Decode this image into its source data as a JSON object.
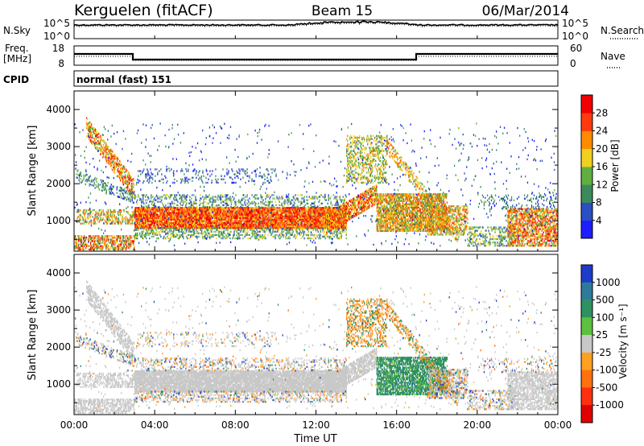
{
  "header": {
    "station": "Kerguelen (fitACF)",
    "beam": "Beam 15",
    "date": "06/Mar/2014"
  },
  "panels": {
    "nsky": {
      "label": "N.Sky",
      "tick_top": "10^5",
      "tick_bottom": "10^0",
      "right_label": "N.Search",
      "right_tick_top": "10^5",
      "right_tick_bottom": "10^0"
    },
    "freq": {
      "label_line1": "Freq.",
      "label_line2": "[MHz]",
      "tick_top": "18",
      "tick_bottom": "8",
      "right_label": "Nave",
      "right_tick_top": "60",
      "right_tick_bottom": "0"
    },
    "cpid": {
      "label": "CPID",
      "value": "normal (fast) 151"
    }
  },
  "axes": {
    "ylabel": "Slant Range [km]",
    "yticks": [
      "1000",
      "2000",
      "3000",
      "4000"
    ],
    "xlabel": "Time UT",
    "xticks": [
      "00:00",
      "04:00",
      "08:00",
      "12:00",
      "16:00",
      "20:00",
      "00:00"
    ]
  },
  "colorbars": {
    "power": {
      "label": "Power [dB]",
      "ticks": [
        "4",
        "8",
        "12",
        "16",
        "20",
        "24",
        "28"
      ],
      "colors": [
        "#1d1dff",
        "#2b4ec0",
        "#3c8a5c",
        "#5fb040",
        "#f0d020",
        "#ff8c00",
        "#ff3a10",
        "#f00000"
      ]
    },
    "velocity": {
      "label": "Velocity [m s⁻¹]",
      "ticks": [
        "1000",
        "500",
        "100",
        "25",
        "-25",
        "-100",
        "-500",
        "-1000"
      ],
      "colors": [
        "#1e3cc8",
        "#2f7a9a",
        "#2f9060",
        "#5dc040",
        "#c8c8c8",
        "#ffa020",
        "#ff7010",
        "#ff3010",
        "#e00000"
      ]
    }
  },
  "chart_data": [
    {
      "type": "heatmap",
      "title": "Power",
      "x_range": [
        "00:00",
        "24:00"
      ],
      "ylim": [
        180,
        4500
      ],
      "ylabel": "Slant Range [km]",
      "xlabel": "Time UT",
      "colorbar_label": "Power [dB]",
      "colorbar_range": [
        0,
        30
      ],
      "features": [
        {
          "desc": "main scatter band",
          "t_start_h": 3.0,
          "t_end_h": 13.5,
          "range_km": [
            800,
            1300
          ],
          "power_db": 26
        },
        {
          "desc": "early oblique trace",
          "t_start_h": 0.5,
          "t_end_h": 3.0,
          "range_km": [
            1600,
            3500
          ],
          "power_db": 22
        },
        {
          "desc": "afternoon echoes",
          "t_start_h": 13.5,
          "t_end_h": 19.0,
          "range_km": [
            800,
            3200
          ],
          "power_db": 20
        },
        {
          "desc": "evening near range",
          "t_start_h": 21.5,
          "t_end_h": 24.0,
          "range_km": [
            300,
            1200
          ],
          "power_db": 24
        }
      ]
    },
    {
      "type": "heatmap",
      "title": "Velocity",
      "x_range": [
        "00:00",
        "24:00"
      ],
      "ylim": [
        180,
        4500
      ],
      "ylabel": "Slant Range [km]",
      "xlabel": "Time UT",
      "colorbar_label": "Velocity [m s⁻¹]",
      "colorbar_range": [
        -1000,
        1000
      ],
      "features": [
        {
          "desc": "ground scatter band",
          "t_start_h": 3.0,
          "t_end_h": 13.5,
          "range_km": [
            800,
            1300
          ],
          "velocity": 0
        },
        {
          "desc": "positive velocity patch",
          "t_start_h": 15.0,
          "t_end_h": 18.5,
          "range_km": [
            700,
            1700
          ],
          "velocity": 200
        },
        {
          "desc": "early oblique ground trace",
          "t_start_h": 0.5,
          "t_end_h": 3.0,
          "range_km": [
            1600,
            3500
          ],
          "velocity": 0
        }
      ]
    }
  ]
}
